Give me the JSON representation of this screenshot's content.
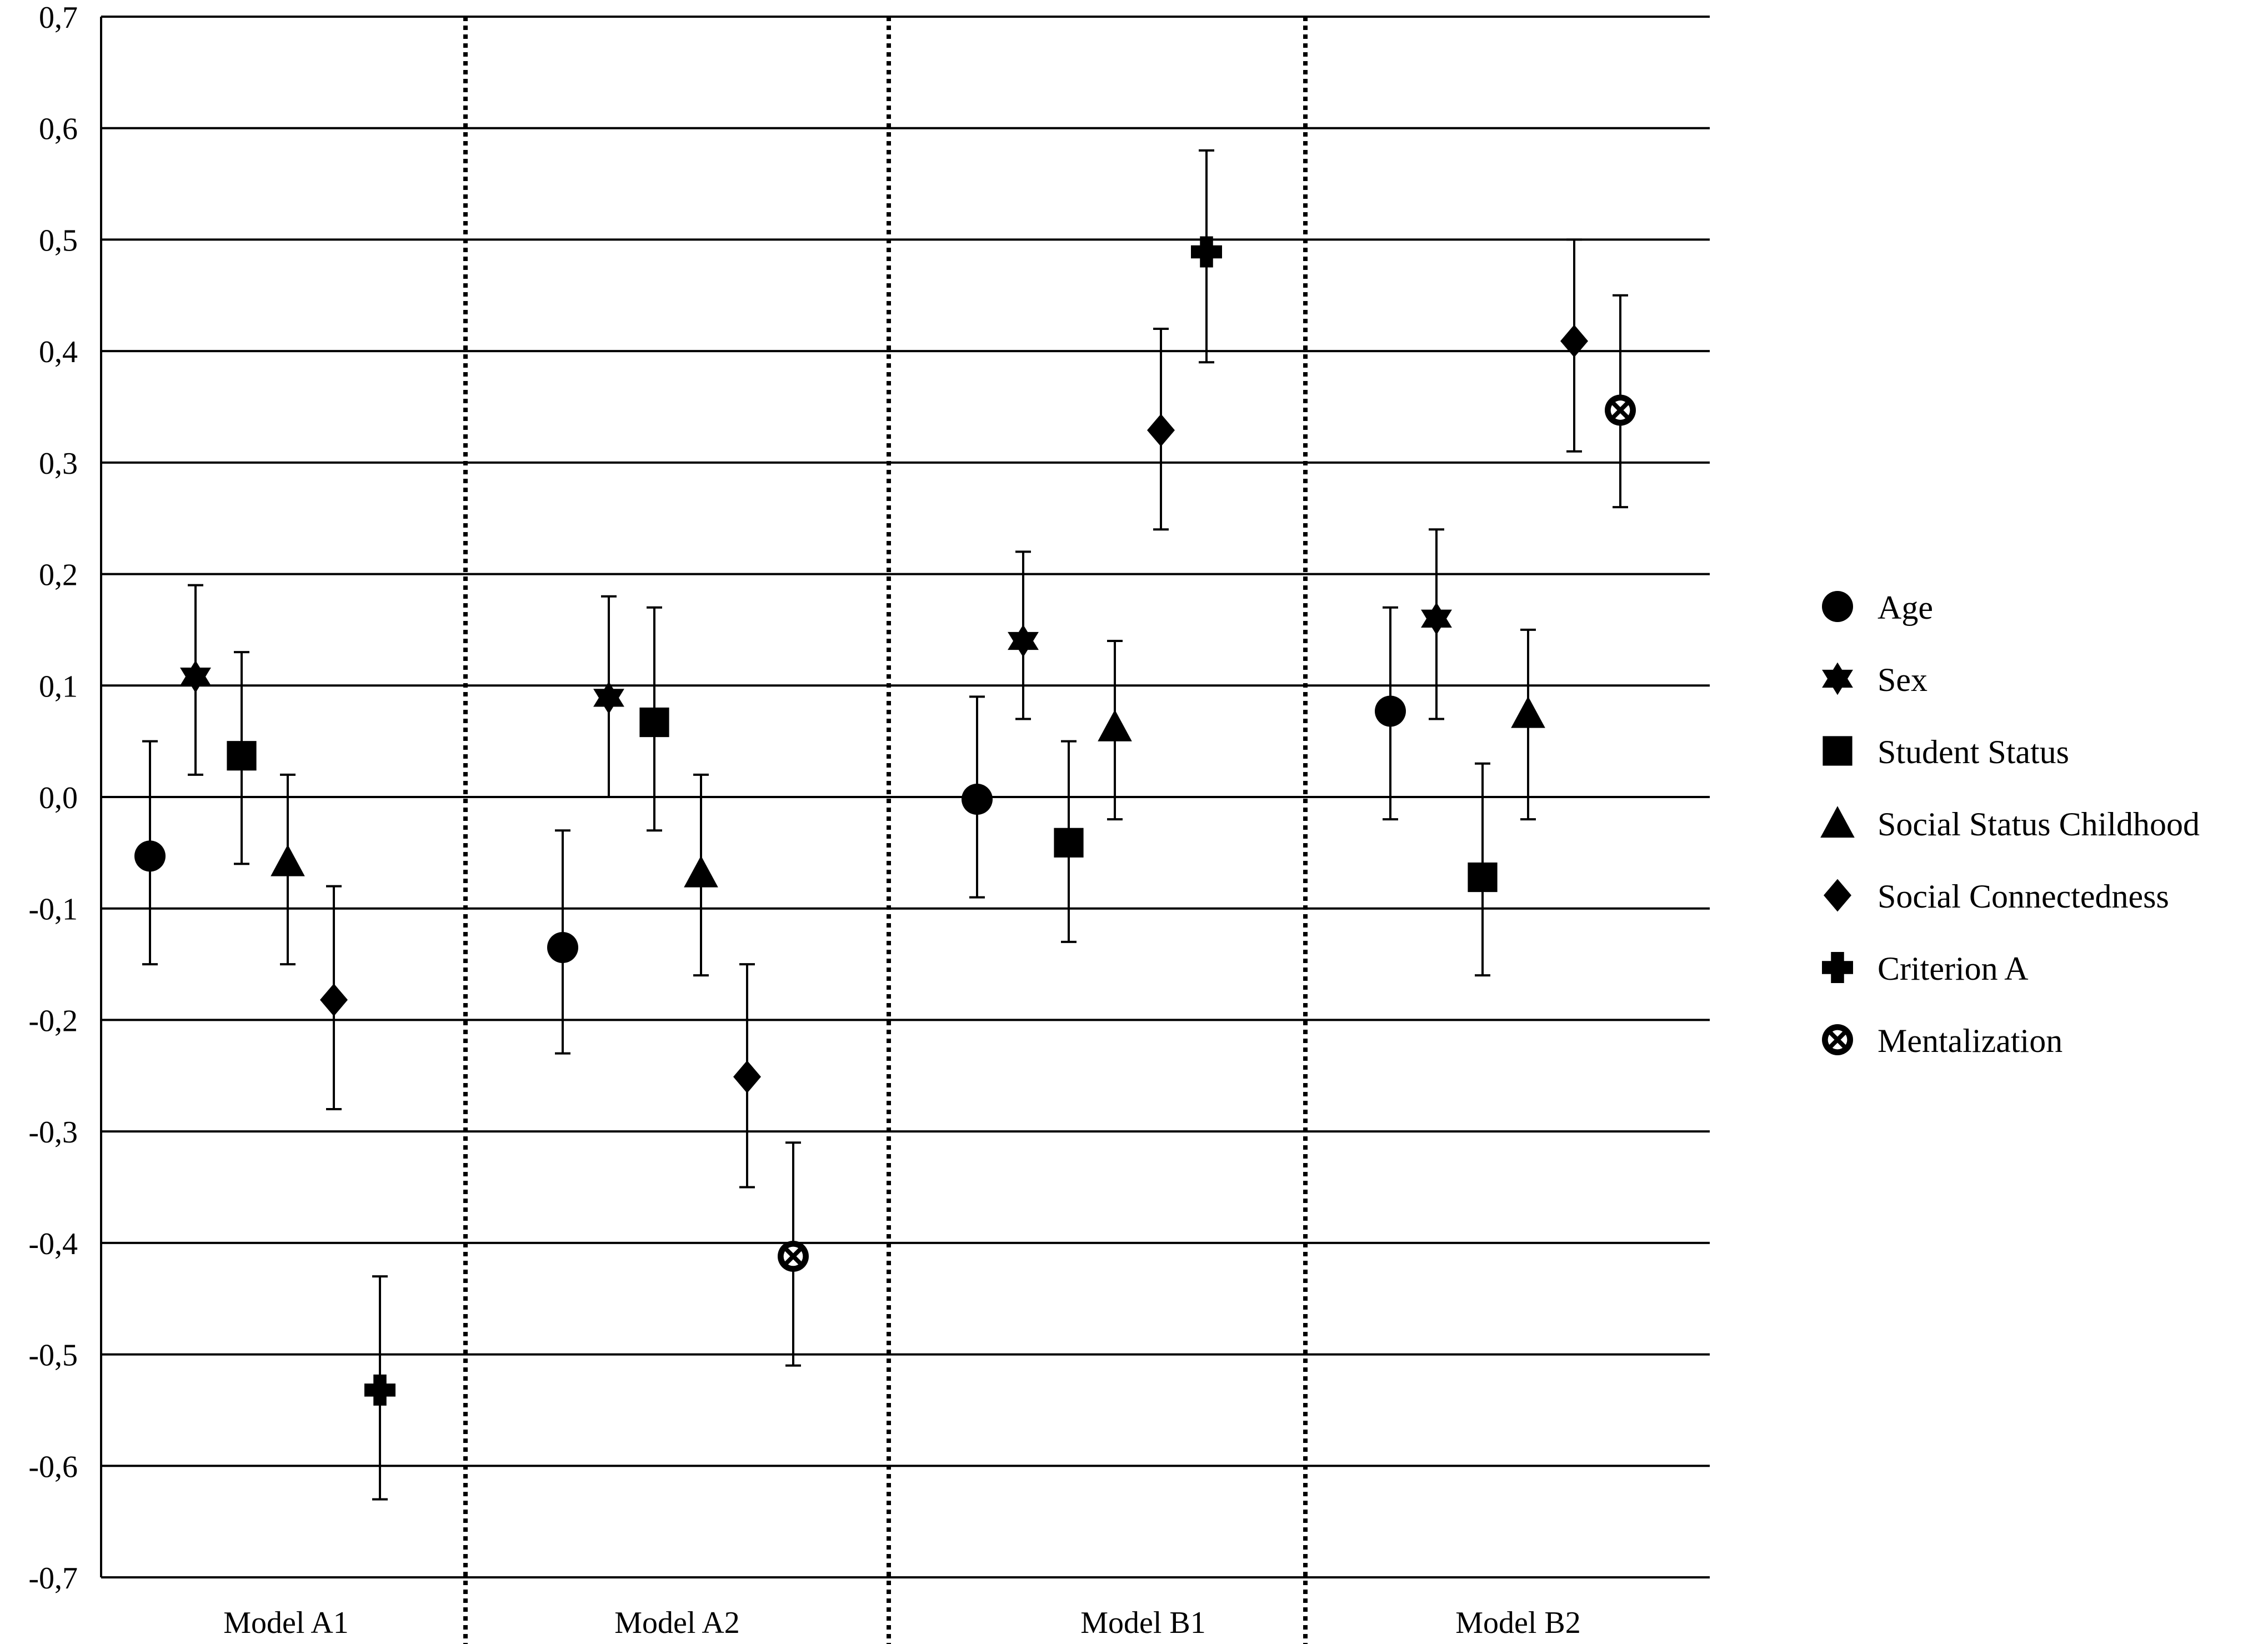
{
  "chart_data": {
    "type": "scatter",
    "title": "",
    "xlabel": "",
    "ylabel": "",
    "ylim": [
      -0.7,
      0.7
    ],
    "yticks": [
      0.7,
      0.6,
      0.5,
      0.4,
      0.3,
      0.2,
      0.1,
      0.0,
      -0.1,
      -0.2,
      -0.3,
      -0.4,
      -0.5,
      -0.6,
      -0.7
    ],
    "ytick_labels": [
      "0,7",
      "0,6",
      "0,5",
      "0,4",
      "0,3",
      "0,2",
      "0,1",
      "0,0",
      "-0,1",
      "-0,2",
      "-0,3",
      "-0,4",
      "-0,5",
      "-0,6",
      "-0,7"
    ],
    "grid": "horizontal",
    "legend_position": "right",
    "group_separators": "dotted",
    "groups": [
      {
        "label": "Model A1",
        "points": [
          {
            "series": "Age",
            "value": -0.053,
            "low": -0.15,
            "high": 0.05
          },
          {
            "series": "Sex",
            "value": 0.108,
            "low": 0.02,
            "high": 0.19
          },
          {
            "series": "Student Status",
            "value": 0.037,
            "low": -0.06,
            "high": 0.13
          },
          {
            "series": "Social Status Childhood",
            "value": -0.058,
            "low": -0.15,
            "high": 0.02
          },
          {
            "series": "Social Connectedness",
            "value": -0.182,
            "low": -0.28,
            "high": -0.08
          },
          {
            "series": "Criterion A",
            "value": -0.532,
            "low": -0.63,
            "high": -0.43
          }
        ]
      },
      {
        "label": "Model A2",
        "points": [
          {
            "series": "Age",
            "value": -0.135,
            "low": -0.23,
            "high": -0.03
          },
          {
            "series": "Sex",
            "value": 0.089,
            "low": 0.0,
            "high": 0.18
          },
          {
            "series": "Student Status",
            "value": 0.067,
            "low": -0.03,
            "high": 0.17
          },
          {
            "series": "Social Status Childhood",
            "value": -0.068,
            "low": -0.16,
            "high": 0.02
          },
          {
            "series": "Social Connectedness",
            "value": -0.251,
            "low": -0.35,
            "high": -0.15
          },
          {
            "series": "Mentalization",
            "value": -0.412,
            "low": -0.51,
            "high": -0.31
          }
        ]
      },
      {
        "label": "Model B1",
        "points": [
          {
            "series": "Age",
            "value": -0.002,
            "low": -0.09,
            "high": 0.09
          },
          {
            "series": "Sex",
            "value": 0.14,
            "low": 0.07,
            "high": 0.22
          },
          {
            "series": "Student Status",
            "value": -0.041,
            "low": -0.13,
            "high": 0.05
          },
          {
            "series": "Social Status Childhood",
            "value": 0.063,
            "low": -0.02,
            "high": 0.14
          },
          {
            "series": "Social Connectedness",
            "value": 0.329,
            "low": 0.24,
            "high": 0.42
          },
          {
            "series": "Criterion A",
            "value": 0.489,
            "low": 0.39,
            "high": 0.58
          }
        ]
      },
      {
        "label": "Model B2",
        "points": [
          {
            "series": "Age",
            "value": 0.077,
            "low": -0.02,
            "high": 0.17
          },
          {
            "series": "Sex",
            "value": 0.16,
            "low": 0.07,
            "high": 0.24
          },
          {
            "series": "Student Status",
            "value": -0.072,
            "low": -0.16,
            "high": 0.03
          },
          {
            "series": "Social Status Childhood",
            "value": 0.075,
            "low": -0.02,
            "high": 0.15
          },
          {
            "series": "Social Connectedness",
            "value": 0.409,
            "low": 0.31,
            "high": 0.5
          },
          {
            "series": "Mentalization",
            "value": 0.347,
            "low": 0.26,
            "high": 0.45
          }
        ]
      }
    ],
    "series": [
      {
        "name": "Age",
        "marker": "circle"
      },
      {
        "name": "Sex",
        "marker": "star"
      },
      {
        "name": "Student Status",
        "marker": "square"
      },
      {
        "name": "Social Status Childhood",
        "marker": "triangle"
      },
      {
        "name": "Social Connectedness",
        "marker": "diamond"
      },
      {
        "name": "Criterion A",
        "marker": "plus"
      },
      {
        "name": "Mentalization",
        "marker": "circle-x"
      }
    ],
    "colors": {
      "marker": "#000000",
      "grid": "#000000",
      "background": "#ffffff"
    }
  }
}
